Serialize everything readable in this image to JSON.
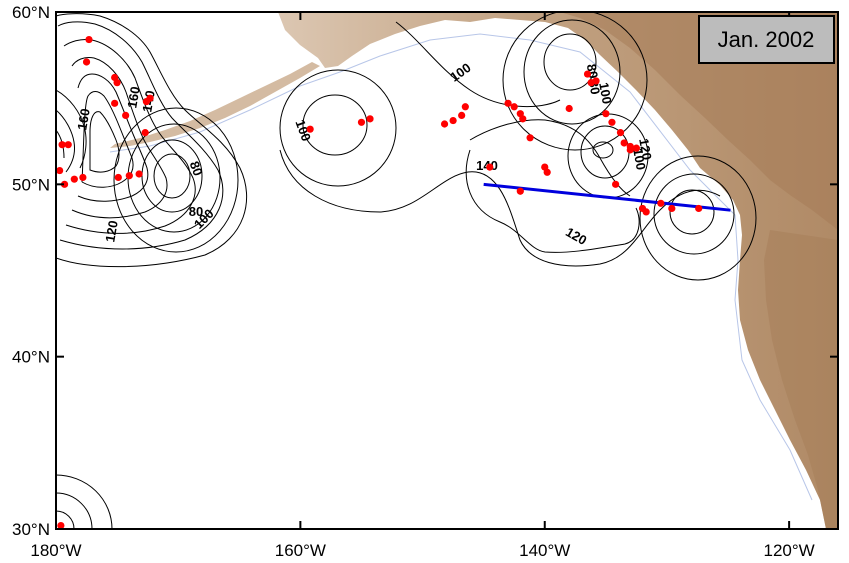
{
  "map": {
    "date_label": "Jan. 2002",
    "x_ticks": [
      {
        "lon": -180,
        "label": "180°W"
      },
      {
        "lon": -160,
        "label": "160°W"
      },
      {
        "lon": -140,
        "label": "140°W"
      },
      {
        "lon": -120,
        "label": "120°W"
      }
    ],
    "y_ticks": [
      {
        "lat": 30,
        "label": "30°N"
      },
      {
        "lat": 40,
        "label": "40°N"
      },
      {
        "lat": 50,
        "label": "50°N"
      },
      {
        "lat": 60,
        "label": "60°N"
      }
    ],
    "lon_range": [
      -180,
      -116
    ],
    "lat_range": [
      30,
      60
    ],
    "contour_labels": [
      "100",
      "100",
      "100",
      "80",
      "80",
      "100",
      "120",
      "160",
      "140",
      "160",
      "120",
      "140",
      "120",
      "100",
      "80",
      "80"
    ],
    "section_line": {
      "color": "#0000dd",
      "start": {
        "lon": -145,
        "lat": 50.0
      },
      "end": {
        "lon": -124.8,
        "lat": 48.5
      }
    },
    "stations_color": "#ff0000",
    "stations": [
      [
        -177.3,
        58.4
      ],
      [
        -177.5,
        57.1
      ],
      [
        -175.2,
        56.2
      ],
      [
        -175.0,
        55.9
      ],
      [
        -172.3,
        55.0
      ],
      [
        -172.6,
        54.8
      ],
      [
        -175.2,
        54.7
      ],
      [
        -174.3,
        54.0
      ],
      [
        -172.7,
        53.0
      ],
      [
        -179.5,
        52.3
      ],
      [
        -179.0,
        52.3
      ],
      [
        -179.7,
        50.8
      ],
      [
        -179.3,
        50.0
      ],
      [
        -178.5,
        50.3
      ],
      [
        -177.8,
        50.4
      ],
      [
        -174.9,
        50.4
      ],
      [
        -174.0,
        50.5
      ],
      [
        -173.2,
        50.6
      ],
      [
        -159.2,
        53.2
      ],
      [
        -155.0,
        53.6
      ],
      [
        -154.3,
        53.8
      ],
      [
        -148.2,
        53.5
      ],
      [
        -147.5,
        53.7
      ],
      [
        -146.8,
        54.0
      ],
      [
        -146.5,
        54.5
      ],
      [
        -143.0,
        54.7
      ],
      [
        -142.5,
        54.5
      ],
      [
        -142.0,
        54.1
      ],
      [
        -141.8,
        53.8
      ],
      [
        -141.2,
        52.7
      ],
      [
        -140.0,
        51.0
      ],
      [
        -139.8,
        50.7
      ],
      [
        -144.5,
        51.0
      ],
      [
        -142.0,
        49.6
      ],
      [
        -138.0,
        54.4
      ],
      [
        -136.5,
        56.4
      ],
      [
        -136.2,
        55.9
      ],
      [
        -135.8,
        56.0
      ],
      [
        -135.0,
        54.1
      ],
      [
        -134.5,
        53.6
      ],
      [
        -133.8,
        53.0
      ],
      [
        -133.5,
        52.4
      ],
      [
        -133.0,
        52.2
      ],
      [
        -132.5,
        52.1
      ],
      [
        -134.2,
        50.0
      ],
      [
        -133.0,
        52.0
      ],
      [
        -132.0,
        48.6
      ],
      [
        -131.7,
        48.4
      ],
      [
        -130.5,
        48.9
      ],
      [
        -129.6,
        48.6
      ],
      [
        -127.4,
        48.6
      ],
      [
        -179.6,
        30.2
      ]
    ]
  }
}
